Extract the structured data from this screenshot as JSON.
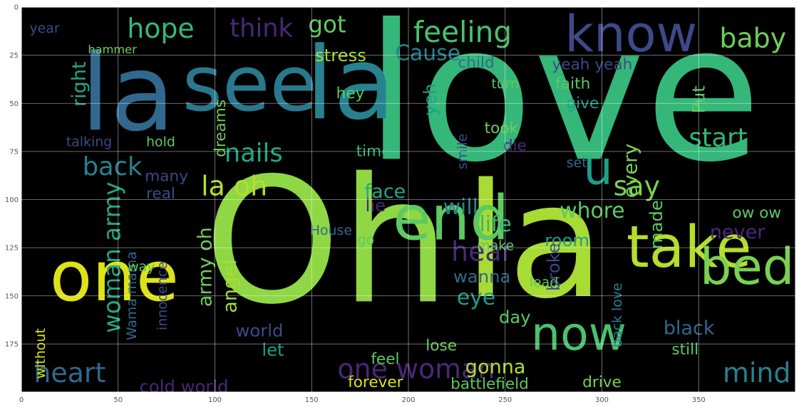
{
  "plot": {
    "background": "#000000",
    "grid": true,
    "x_ticks": [
      "0",
      "50",
      "100",
      "150",
      "200",
      "250",
      "300",
      "350"
    ],
    "y_ticks": [
      "0",
      "25",
      "50",
      "75",
      "100",
      "125",
      "150",
      "175"
    ],
    "x_tick_values": [
      0,
      50,
      100,
      150,
      200,
      250,
      300,
      350
    ],
    "y_tick_values": [
      0,
      25,
      50,
      75,
      100,
      125,
      150,
      175
    ],
    "xlim": [
      0,
      400
    ],
    "ylim": [
      200,
      0
    ]
  },
  "words": [
    {
      "text": "love",
      "x": 280,
      "y": 45,
      "size": 98,
      "color": "#35b779"
    },
    {
      "text": "Oh",
      "x": 158,
      "y": 122,
      "size": 90,
      "color": "#8fd744"
    },
    {
      "text": "la",
      "x": 265,
      "y": 122,
      "size": 82,
      "color": "#a8db34"
    },
    {
      "text": "la",
      "x": 55,
      "y": 45,
      "size": 55,
      "color": "#31688e"
    },
    {
      "text": "la",
      "x": 170,
      "y": 40,
      "size": 52,
      "color": "#26828e"
    },
    {
      "text": "see",
      "x": 118,
      "y": 40,
      "size": 40,
      "color": "#2a788e"
    },
    {
      "text": "know",
      "x": 315,
      "y": 14,
      "size": 26,
      "color": "#3e4989"
    },
    {
      "text": "one",
      "x": 48,
      "y": 140,
      "size": 36,
      "color": "#dde318"
    },
    {
      "text": "end",
      "x": 222,
      "y": 110,
      "size": 32,
      "color": "#5ec962"
    },
    {
      "text": "take",
      "x": 345,
      "y": 125,
      "size": 30,
      "color": "#b5de2b"
    },
    {
      "text": "bed",
      "x": 375,
      "y": 135,
      "size": 26,
      "color": "#7ad151"
    },
    {
      "text": "now",
      "x": 288,
      "y": 170,
      "size": 24,
      "color": "#4ac16d"
    },
    {
      "text": "u",
      "x": 298,
      "y": 84,
      "size": 24,
      "color": "#1f9e89"
    },
    {
      "text": "hope",
      "x": 72,
      "y": 11,
      "size": 14,
      "color": "#35b779"
    },
    {
      "text": "think",
      "x": 124,
      "y": 11,
      "size": 13,
      "color": "#482878"
    },
    {
      "text": "got",
      "x": 158,
      "y": 9,
      "size": 12,
      "color": "#5ec962"
    },
    {
      "text": "feeling",
      "x": 228,
      "y": 13,
      "size": 15,
      "color": "#4ac16d"
    },
    {
      "text": "baby",
      "x": 378,
      "y": 16,
      "size": 14,
      "color": "#6ece58"
    },
    {
      "text": "stress",
      "x": 165,
      "y": 25,
      "size": 9,
      "color": "#a8db34"
    },
    {
      "text": "Cause",
      "x": 210,
      "y": 24,
      "size": 11,
      "color": "#26828e"
    },
    {
      "text": "right",
      "x": 30,
      "y": 40,
      "size": 10,
      "color": "#22a884",
      "rotate": -90
    },
    {
      "text": "hammer",
      "x": 47,
      "y": 22,
      "size": 6,
      "color": "#6ece58"
    },
    {
      "text": "year",
      "x": 12,
      "y": 11,
      "size": 7,
      "color": "#3e4989"
    },
    {
      "text": "dreams",
      "x": 103,
      "y": 63,
      "size": 8,
      "color": "#6ece58",
      "rotate": -90
    },
    {
      "text": "nails",
      "x": 120,
      "y": 76,
      "size": 13,
      "color": "#22a884"
    },
    {
      "text": "back",
      "x": 47,
      "y": 83,
      "size": 13,
      "color": "#26828e"
    },
    {
      "text": "la oh",
      "x": 110,
      "y": 93,
      "size": 14,
      "color": "#b5de2b"
    },
    {
      "text": "talking",
      "x": 35,
      "y": 70,
      "size": 7,
      "color": "#3e4989"
    },
    {
      "text": "hold",
      "x": 72,
      "y": 70,
      "size": 7,
      "color": "#5ec962"
    },
    {
      "text": "face",
      "x": 188,
      "y": 96,
      "size": 10,
      "color": "#22a884"
    },
    {
      "text": "lie",
      "x": 183,
      "y": 103,
      "size": 9,
      "color": "#482878"
    },
    {
      "text": "say",
      "x": 318,
      "y": 93,
      "size": 14,
      "color": "#7ad151"
    },
    {
      "text": "will",
      "x": 227,
      "y": 104,
      "size": 11,
      "color": "#26828e"
    },
    {
      "text": "whore",
      "x": 295,
      "y": 106,
      "size": 11,
      "color": "#5ec962"
    },
    {
      "text": "life",
      "x": 245,
      "y": 113,
      "size": 11,
      "color": "#35b779"
    },
    {
      "text": "hear",
      "x": 238,
      "y": 127,
      "size": 14,
      "color": "#482878"
    },
    {
      "text": "wanna",
      "x": 238,
      "y": 140,
      "size": 9,
      "color": "#31688e"
    },
    {
      "text": "eye",
      "x": 235,
      "y": 151,
      "size": 11,
      "color": "#1f9e89"
    },
    {
      "text": "day",
      "x": 255,
      "y": 161,
      "size": 9,
      "color": "#5ec962"
    },
    {
      "text": "heart",
      "x": 25,
      "y": 190,
      "size": 14,
      "color": "#31688e"
    },
    {
      "text": "woman army",
      "x": 47,
      "y": 130,
      "size": 12,
      "color": "#22a884",
      "rotate": -90
    },
    {
      "text": "army oh",
      "x": 95,
      "y": 135,
      "size": 10,
      "color": "#6ece58",
      "rotate": -90
    },
    {
      "text": "angel",
      "x": 108,
      "y": 145,
      "size": 10,
      "color": "#a8db34",
      "rotate": -90
    },
    {
      "text": "innocence",
      "x": 73,
      "y": 150,
      "size": 7,
      "color": "#3e4989",
      "rotate": -90
    },
    {
      "text": "Wama mama",
      "x": 57,
      "y": 150,
      "size": 7,
      "color": "#31688e",
      "rotate": -90
    },
    {
      "text": "world",
      "x": 123,
      "y": 168,
      "size": 9,
      "color": "#3e4989"
    },
    {
      "text": "let",
      "x": 130,
      "y": 178,
      "size": 9,
      "color": "#1f9e89"
    },
    {
      "text": "one woman",
      "x": 204,
      "y": 188,
      "size": 14,
      "color": "#482878"
    },
    {
      "text": "cold world",
      "x": 84,
      "y": 197,
      "size": 9,
      "color": "#482878"
    },
    {
      "text": "forever",
      "x": 183,
      "y": 195,
      "size": 8,
      "color": "#dde318"
    },
    {
      "text": "gonna",
      "x": 245,
      "y": 187,
      "size": 10,
      "color": "#b5de2b"
    },
    {
      "text": "battlefield",
      "x": 242,
      "y": 196,
      "size": 8,
      "color": "#5ec962"
    },
    {
      "text": "lose",
      "x": 217,
      "y": 176,
      "size": 8,
      "color": "#6ece58"
    },
    {
      "text": "feel",
      "x": 188,
      "y": 183,
      "size": 8,
      "color": "#5ec962"
    },
    {
      "text": "drive",
      "x": 300,
      "y": 195,
      "size": 8,
      "color": "#7ad151"
    },
    {
      "text": "mind",
      "x": 380,
      "y": 190,
      "size": 14,
      "color": "#26828e"
    },
    {
      "text": "black",
      "x": 345,
      "y": 167,
      "size": 10,
      "color": "#31688e"
    },
    {
      "text": "still",
      "x": 343,
      "y": 178,
      "size": 8,
      "color": "#5ec962"
    },
    {
      "text": "start",
      "x": 360,
      "y": 68,
      "size": 13,
      "color": "#35b779"
    },
    {
      "text": "every",
      "x": 315,
      "y": 85,
      "size": 10,
      "color": "#7ad151",
      "rotate": -90
    },
    {
      "text": "made",
      "x": 328,
      "y": 113,
      "size": 9,
      "color": "#5ec962",
      "rotate": -90
    },
    {
      "text": "never",
      "x": 370,
      "y": 117,
      "size": 10,
      "color": "#482878"
    },
    {
      "text": "ow ow",
      "x": 380,
      "y": 107,
      "size": 8,
      "color": "#5ec962"
    },
    {
      "text": "room",
      "x": 282,
      "y": 121,
      "size": 9,
      "color": "#1f9e89"
    },
    {
      "text": "broke",
      "x": 275,
      "y": 135,
      "size": 9,
      "color": "#3e4989",
      "rotate": -90
    },
    {
      "text": "back love",
      "x": 308,
      "y": 160,
      "size": 7,
      "color": "#26828e",
      "rotate": -90
    },
    {
      "text": "Put",
      "x": 350,
      "y": 48,
      "size": 9,
      "color": "#5ec962",
      "rotate": -90
    },
    {
      "text": "yeah yeah",
      "x": 295,
      "y": 30,
      "size": 8,
      "color": "#3e4989"
    },
    {
      "text": "faith",
      "x": 285,
      "y": 40,
      "size": 8,
      "color": "#5ec962"
    },
    {
      "text": "give",
      "x": 290,
      "y": 50,
      "size": 8,
      "color": "#1f9e89"
    },
    {
      "text": "took",
      "x": 248,
      "y": 63,
      "size": 8,
      "color": "#6ece58"
    },
    {
      "text": "die",
      "x": 255,
      "y": 72,
      "size": 8,
      "color": "#482878"
    },
    {
      "text": "set",
      "x": 287,
      "y": 81,
      "size": 7,
      "color": "#31688e"
    },
    {
      "text": "time",
      "x": 182,
      "y": 75,
      "size": 8,
      "color": "#35b779"
    },
    {
      "text": "smile",
      "x": 228,
      "y": 75,
      "size": 7,
      "color": "#3e4989",
      "rotate": -90
    },
    {
      "text": "yeh",
      "x": 211,
      "y": 48,
      "size": 9,
      "color": "#1f9e89",
      "rotate": -90
    },
    {
      "text": "hey",
      "x": 170,
      "y": 45,
      "size": 8,
      "color": "#5ec962"
    },
    {
      "text": "child",
      "x": 235,
      "y": 29,
      "size": 8,
      "color": "#31688e"
    },
    {
      "text": "turn",
      "x": 250,
      "y": 40,
      "size": 7,
      "color": "#5ec962"
    },
    {
      "text": "many",
      "x": 75,
      "y": 88,
      "size": 8,
      "color": "#3e4989"
    },
    {
      "text": "real",
      "x": 72,
      "y": 97,
      "size": 8,
      "color": "#3e4989"
    },
    {
      "text": "way",
      "x": 62,
      "y": 135,
      "size": 7,
      "color": "#5ec962"
    },
    {
      "text": "House",
      "x": 160,
      "y": 116,
      "size": 7,
      "color": "#31688e"
    },
    {
      "text": "go",
      "x": 178,
      "y": 121,
      "size": 7,
      "color": "#5ec962"
    },
    {
      "text": "make",
      "x": 245,
      "y": 124,
      "size": 7,
      "color": "#5ec962"
    },
    {
      "text": "lead",
      "x": 270,
      "y": 143,
      "size": 7,
      "color": "#5ec962"
    },
    {
      "text": "without",
      "x": 10,
      "y": 180,
      "size": 7,
      "color": "#dde318",
      "rotate": -90
    }
  ]
}
